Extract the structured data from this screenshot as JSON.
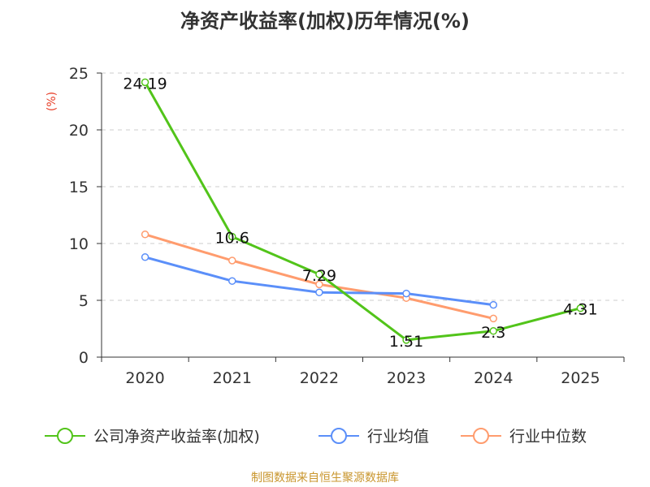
{
  "title": "净资产收益率(加权)历年情况(%)",
  "footer": "制图数据来自恒生聚源数据库",
  "colors": {
    "company": "#52c41a",
    "avg": "#5b8ff9",
    "median": "#ff9c6e",
    "ylabel": "#e8402a",
    "grid": "#cccccc",
    "axis": "#333333"
  },
  "chart_data": {
    "type": "line",
    "title": "净资产收益率(加权)历年情况(%)",
    "xlabel": "",
    "ylabel": "(%)",
    "ylim": [
      0,
      25
    ],
    "yticks": [
      0,
      5,
      10,
      15,
      20,
      25
    ],
    "categories": [
      "2020",
      "2021",
      "2022",
      "2023",
      "2024",
      "2025"
    ],
    "series": [
      {
        "name": "公司净资产收益率(加权)",
        "values": [
          24.19,
          10.6,
          7.29,
          1.51,
          2.3,
          4.31
        ],
        "labels": [
          "24.19",
          "10.6",
          "7.29",
          "1.51",
          "2.3",
          "4.31"
        ]
      },
      {
        "name": "行业均值",
        "values": [
          8.8,
          6.7,
          5.7,
          5.6,
          4.6,
          null
        ]
      },
      {
        "name": "行业中位数",
        "values": [
          10.8,
          8.5,
          6.4,
          5.2,
          3.4,
          null
        ]
      }
    ],
    "legend_position": "bottom"
  }
}
